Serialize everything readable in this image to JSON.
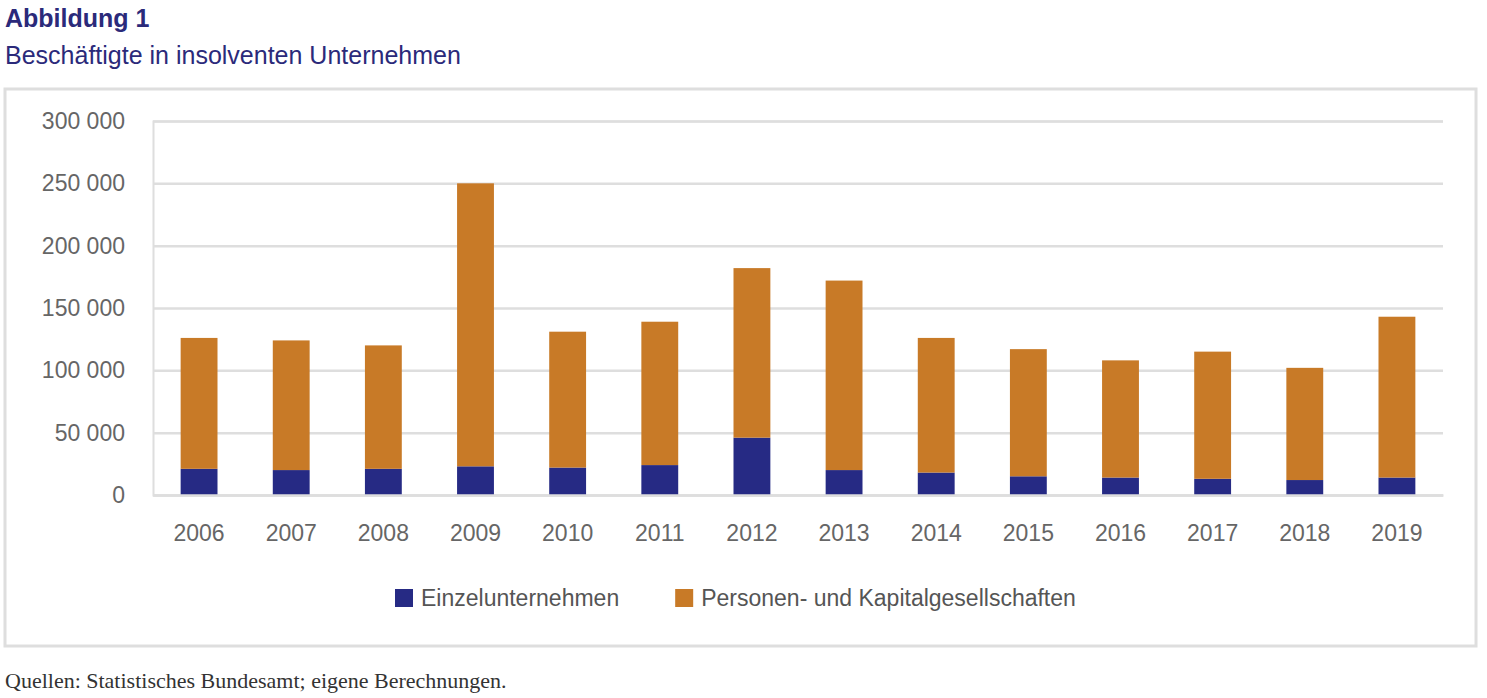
{
  "chart_data": {
    "type": "bar",
    "title": "Abbildung 1",
    "subtitle": "Beschäftigte in insolventen Unternehmen",
    "source": "Quellen: Statistisches Bundesamt; eigene Berechnungen.",
    "categories": [
      "2006",
      "2007",
      "2008",
      "2009",
      "2010",
      "2011",
      "2012",
      "2013",
      "2014",
      "2015",
      "2016",
      "2017",
      "2018",
      "2019"
    ],
    "series": [
      {
        "name": "Einzelunternehmen",
        "color": "#262a84",
        "values": [
          21000,
          20000,
          21000,
          23000,
          22000,
          24000,
          46000,
          20000,
          18000,
          15000,
          14000,
          13000,
          12000,
          14000
        ]
      },
      {
        "name": "Personen- und Kapitalgesellschaften",
        "color": "#c87a27",
        "values": [
          105000,
          104000,
          99000,
          227000,
          109000,
          115000,
          136000,
          152000,
          108000,
          102000,
          94000,
          102000,
          90000,
          129000
        ]
      }
    ],
    "stacked": true,
    "ylim": [
      0,
      300000
    ],
    "yticks": [
      0,
      {
        "value": 50000,
        "label": "50 000"
      },
      {
        "value": 100000,
        "label": "100 000"
      },
      {
        "value": 150000,
        "label": "150 000"
      },
      {
        "value": 200000,
        "label": "200 000"
      },
      {
        "value": 250000,
        "label": "250 000"
      },
      {
        "value": 300000,
        "label": "300 000"
      }
    ],
    "grid": true,
    "legend": "bottom"
  }
}
